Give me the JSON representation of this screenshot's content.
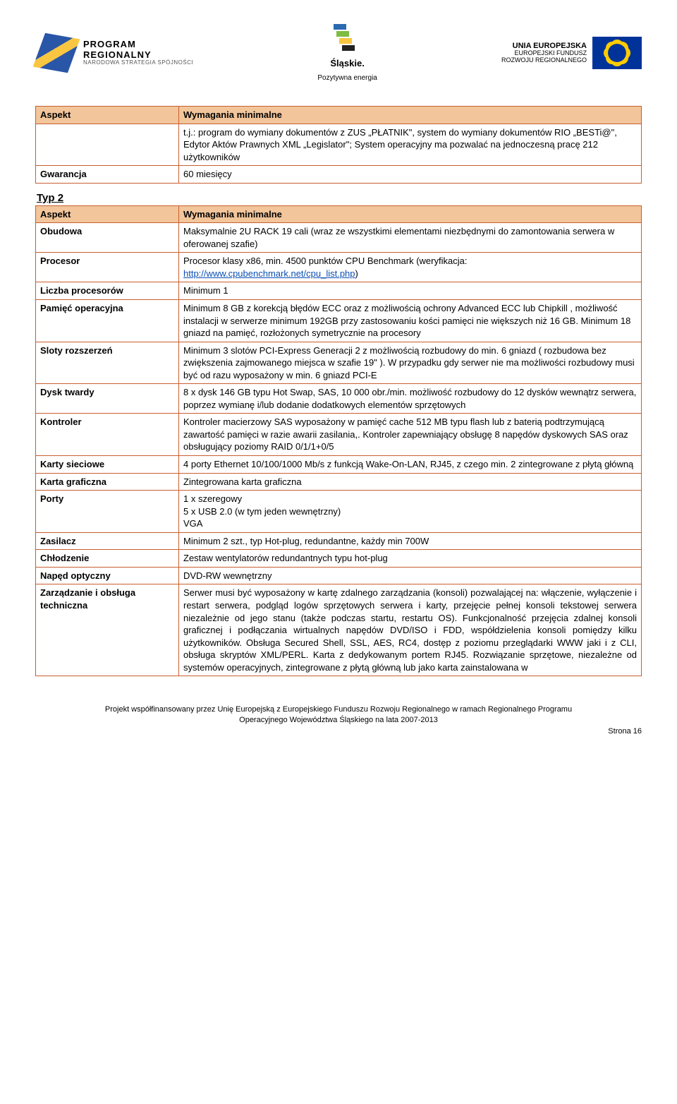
{
  "logos": {
    "left_line1": "PROGRAM",
    "left_line2": "REGIONALNY",
    "left_line3": "NARODOWA STRATEGIA SPÓJNOŚCI",
    "mid_line1": "Śląskie.",
    "mid_line2": "Pozytywna energia",
    "right_line1": "UNIA EUROPEJSKA",
    "right_line2": "EUROPEJSKI FUNDUSZ",
    "right_line3": "ROZWOJU REGIONALNEGO"
  },
  "table1_header_col0": "Aspekt",
  "table1_header_col1": "Wymagania minimalne",
  "table1_row0_label": "",
  "table1_row0_val": "t.j.: program do wymiany dokumentów z ZUS „PŁATNIK\", system do wymiany dokumentów RIO „BESTi@\", Edytor Aktów Prawnych XML „Legislator\"; System operacyjny ma pozwalać na jednoczesną pracę 212 użytkowników",
  "table1_row1_label": "Gwarancja",
  "table1_row1_val": "60 miesięcy",
  "typ2_heading": "Typ 2",
  "t2_header_col0": "Aspekt",
  "t2_header_col1": "Wymagania minimalne",
  "t2": {
    "obudowa_l": "Obudowa",
    "obudowa_v": "Maksymalnie 2U RACK 19 cali (wraz ze wszystkimi elementami niezbędnymi do zamontowania serwera w oferowanej szafie)",
    "procesor_l": "Procesor",
    "procesor_pre": "Procesor klasy x86, min. 4500 punktów CPU Benchmark (weryfikacja: ",
    "procesor_link": "http://www.cpubenchmark.net/cpu_list.php",
    "procesor_post": ")",
    "liczba_l": "Liczba procesorów",
    "liczba_v": "Minimum 1",
    "pamiec_l": "Pamięć operacyjna",
    "pamiec_v": "Minimum 8 GB z korekcją błędów ECC oraz z możliwością ochrony Advanced ECC lub Chipkill , możliwość instalacji w serwerze minimum 192GB przy zastosowaniu kości pamięci nie większych niż 16 GB. Minimum 18 gniazd na pamięć, rozłożonych symetrycznie na procesory",
    "sloty_l": "Sloty rozszerzeń",
    "sloty_v": "Minimum 3 slotów PCI-Express Generacji 2 z możliwością rozbudowy do min. 6 gniazd ( rozbudowa bez zwiększenia zajmowanego miejsca w szafie 19\" ). W przypadku gdy serwer nie ma możliwości rozbudowy musi być od razu wyposażony w min. 6 gniazd PCI-E",
    "dysk_l": "Dysk twardy",
    "dysk_v": "8 x dysk 146 GB typu Hot Swap, SAS, 10 000 obr./min. możliwość rozbudowy do 12 dysków wewnątrz serwera, poprzez wymianę i/lub dodanie dodatkowych elementów sprzętowych",
    "kontroler_l": "Kontroler",
    "kontroler_v": "Kontroler macierzowy SAS wyposażony w pamięć cache 512 MB typu flash lub z baterią podtrzymującą zawartość pamięci w razie awarii zasilania,. Kontroler zapewniający obsługę 8 napędów dyskowych SAS oraz obsługujący poziomy RAID 0/1/1+0/5",
    "karty_l": "Karty sieciowe",
    "karty_v": "4 porty Ethernet 10/100/1000 Mb/s z funkcją Wake-On-LAN, RJ45,    z czego min. 2 zintegrowane z płytą główną",
    "karta_l": "Karta graficzna",
    "karta_v": "Zintegrowana karta graficzna",
    "porty_l": "Porty",
    "porty_v": "1 x szeregowy\n5 x USB 2.0 (w tym jeden wewnętrzny)\nVGA",
    "zasilacz_l": "Zasilacz",
    "zasilacz_v": "Minimum 2 szt., typ Hot-plug, redundantne, każdy min 700W",
    "chlodzenie_l": "Chłodzenie",
    "chlodzenie_v": "Zestaw wentylatorów redundantnych typu hot-plug",
    "naped_l": "Napęd optyczny",
    "naped_v": "DVD-RW wewnętrzny",
    "zarz_l": "Zarządzanie i obsługa techniczna",
    "zarz_v": "Serwer musi być wyposażony w kartę zdalnego zarządzania (konsoli) pozwalającej na: włączenie, wyłączenie i restart serwera, podgląd logów sprzętowych serwera i karty, przejęcie pełnej konsoli tekstowej serwera niezależnie od jego stanu (także podczas startu, restartu OS). Funkcjonalność przejęcia zdalnej konsoli graficznej                         i podłączania wirtualnych napędów DVD/ISO i FDD, współdzielenia konsoli pomiędzy kilku użytkowników. Obsługa Secured Shell, SSL, AES, RC4, dostęp z poziomu przeglądarki WWW jaki i z CLI, obsługa skryptów XML/PERL. Karta z dedykowanym portem RJ45. Rozwiązanie sprzętowe, niezależne od systemów operacyjnych, zintegrowane z płytą główną lub jako karta zainstalowana               w"
  },
  "footer": {
    "line1": "Projekt współfinansowany przez Unię Europejską z Europejskiego Funduszu Rozwoju Regionalnego w ramach Regionalnego Programu",
    "line2": "Operacyjnego Województwa Śląskiego na lata 2007-2013",
    "page": "Strona 16"
  },
  "colors": {
    "header_bg": "#f2c59b",
    "border": "#c85f2f",
    "link": "#0b4fb5"
  }
}
